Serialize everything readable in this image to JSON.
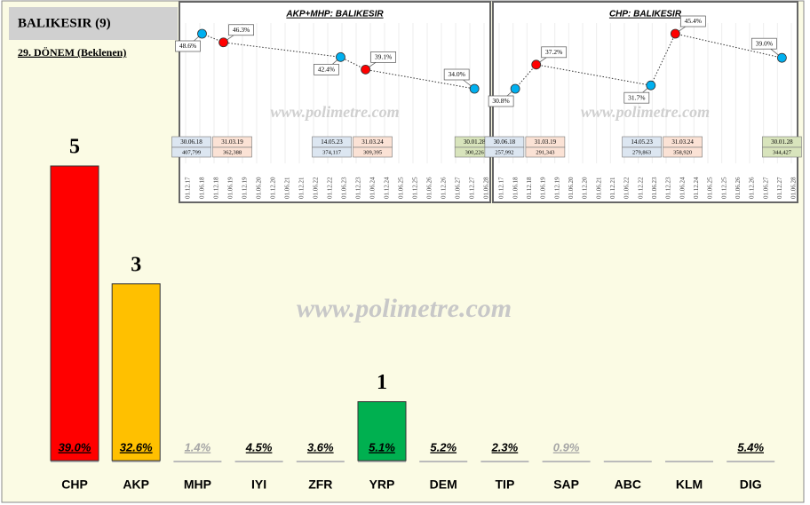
{
  "header": {
    "title": "BALIKESIR (9)",
    "subtitle": "29. DÖNEM (Beklenen)",
    "watermark": "www.polimetre.com"
  },
  "chart_data": [
    {
      "type": "bar",
      "categories": [
        "CHP",
        "AKP",
        "MHP",
        "IYI",
        "ZFR",
        "YRP",
        "DEM",
        "TIP",
        "SAP",
        "ABC",
        "KLM",
        "DIG"
      ],
      "values": [
        5,
        3,
        0,
        0,
        0,
        1,
        0,
        0,
        0,
        0,
        0,
        0
      ],
      "colors": [
        "#ff0000",
        "#ffc000",
        "#ffc000",
        "#ffc000",
        "#ffc000",
        "#00b050",
        "#ffc000",
        "#ffc000",
        "#ffc000",
        "#ffc000",
        "#ffc000",
        "#ffc000"
      ],
      "vote_share": [
        39.0,
        32.6,
        1.4,
        4.5,
        3.6,
        5.1,
        5.2,
        2.3,
        0.9,
        null,
        null,
        5.4
      ],
      "vote_share_labels": [
        "39.0%",
        "32.6%",
        "1.4%",
        "4.5%",
        "3.6%",
        "5.1%",
        "5.2%",
        "2.3%",
        "0.9%",
        null,
        null,
        "5.4%"
      ],
      "vote_share_label_colors": [
        "#000",
        "#000",
        "#a6a6a6",
        "#000",
        "#000",
        "#000",
        "#000",
        "#000",
        "#a6a6a6",
        "#000",
        "#000",
        "#000"
      ]
    },
    {
      "type": "line",
      "title": "AKP+MHP: BALIKESIR",
      "x": [
        "01.12.17",
        "01.06.18",
        "01.12.18",
        "01.06.19",
        "01.12.19",
        "01.06.20",
        "01.12.20",
        "01.06.21",
        "01.12.21",
        "01.06.22",
        "01.12.22",
        "01.06.23",
        "01.12.23",
        "01.06.24",
        "01.12.24",
        "01.06.25",
        "01.12.25",
        "01.06.26",
        "01.12.26",
        "01.06.27",
        "01.12.27",
        "01.06.28"
      ],
      "dates": [
        "30.06.18",
        "31.03.19",
        "14.05.23",
        "31.03.24",
        "30.01.28"
      ],
      "values": [
        48.6,
        46.3,
        42.4,
        39.1,
        34.0
      ],
      "value_labels": [
        "48.6%",
        "46.3%",
        "42.4%",
        "39.1%",
        "34.0%"
      ],
      "colors": [
        "#00b0f0",
        "#ff0000",
        "#00b0f0",
        "#ff0000",
        "#00b0f0"
      ],
      "votes": [
        407799,
        362388,
        374117,
        309395,
        300226
      ],
      "votes_labels": [
        "407,799",
        "362,388",
        "374,117",
        "309,395",
        "300,226"
      ],
      "box_colors": [
        "#dce6f1",
        "#fbe2d5",
        "#dce6f1",
        "#fbe2d5",
        "#d8e4bc"
      ]
    },
    {
      "type": "line",
      "title": "CHP: BALIKESIR",
      "x": [
        "01.12.17",
        "01.06.18",
        "01.12.18",
        "01.06.19",
        "01.12.19",
        "01.06.20",
        "01.12.20",
        "01.06.21",
        "01.12.21",
        "01.06.22",
        "01.12.22",
        "01.06.23",
        "01.12.23",
        "01.06.24",
        "01.12.24",
        "01.06.25",
        "01.12.25",
        "01.06.26",
        "01.12.26",
        "01.06.27",
        "01.12.27",
        "01.06.28"
      ],
      "dates": [
        "30.06.18",
        "31.03.19",
        "14.05.23",
        "31.03.24",
        "30.01.28"
      ],
      "values": [
        30.8,
        37.2,
        31.7,
        45.4,
        39.0
      ],
      "value_labels": [
        "30.8%",
        "37.2%",
        "31.7%",
        "45.4%",
        "39.0%"
      ],
      "colors": [
        "#00b0f0",
        "#ff0000",
        "#00b0f0",
        "#ff0000",
        "#00b0f0"
      ],
      "votes": [
        257992,
        291343,
        279863,
        358920,
        344427
      ],
      "votes_labels": [
        "257,992",
        "291,343",
        "279,863",
        "358,920",
        "344,427"
      ],
      "box_colors": [
        "#dce6f1",
        "#fbe2d5",
        "#dce6f1",
        "#fbe2d5",
        "#d8e4bc"
      ]
    }
  ]
}
